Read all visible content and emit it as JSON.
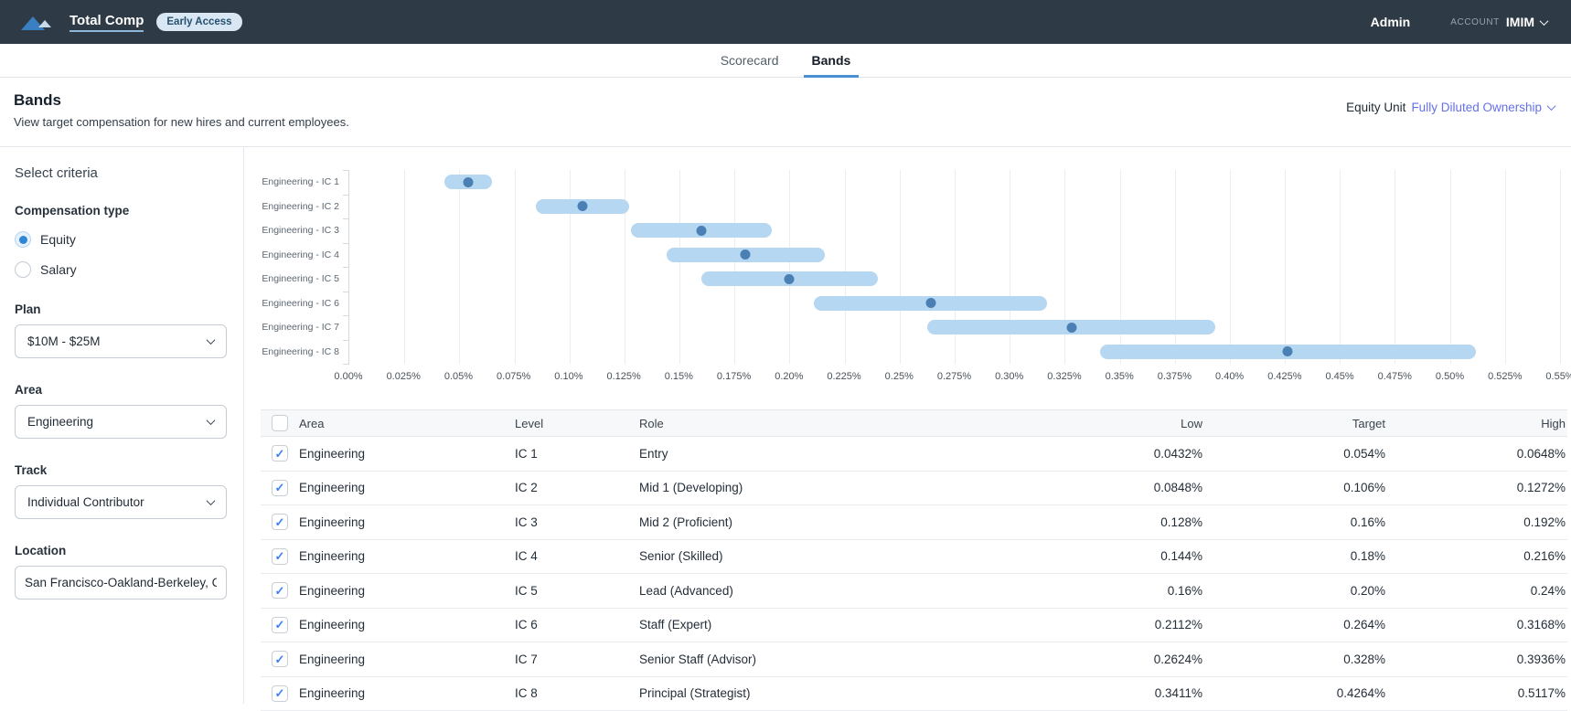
{
  "header": {
    "app_name": "Total Comp",
    "badge": "Early Access",
    "admin_label": "Admin",
    "account_label": "ACCOUNT",
    "account_name": "IMIM"
  },
  "tabs": [
    {
      "label": "Scorecard",
      "active": false
    },
    {
      "label": "Bands",
      "active": true
    }
  ],
  "page": {
    "title": "Bands",
    "subtitle": "View target compensation for new hires and current employees.",
    "equity_unit_label": "Equity Unit",
    "equity_unit_value": "Fully Diluted Ownership"
  },
  "sidebar": {
    "title": "Select criteria",
    "comp_type_label": "Compensation type",
    "radios": [
      {
        "label": "Equity",
        "selected": true
      },
      {
        "label": "Salary",
        "selected": false
      }
    ],
    "fields": [
      {
        "label": "Plan",
        "value": "$10M - $25M",
        "type": "select"
      },
      {
        "label": "Area",
        "value": "Engineering",
        "type": "select"
      },
      {
        "label": "Track",
        "value": "Individual Contributor",
        "type": "select"
      },
      {
        "label": "Location",
        "value": "San Francisco-Oakland-Berkeley, C.",
        "type": "input"
      }
    ]
  },
  "chart_data": {
    "type": "range-bar",
    "orientation": "horizontal",
    "xmin": 0,
    "xmax": 0.55,
    "grid": true,
    "ticks": [
      {
        "value": 0,
        "label": "0.00%"
      },
      {
        "value": 0.025,
        "label": "0.025%"
      },
      {
        "value": 0.05,
        "label": "0.05%"
      },
      {
        "value": 0.075,
        "label": "0.075%"
      },
      {
        "value": 0.1,
        "label": "0.10%"
      },
      {
        "value": 0.125,
        "label": "0.125%"
      },
      {
        "value": 0.15,
        "label": "0.15%"
      },
      {
        "value": 0.175,
        "label": "0.175%"
      },
      {
        "value": 0.2,
        "label": "0.20%"
      },
      {
        "value": 0.225,
        "label": "0.225%"
      },
      {
        "value": 0.25,
        "label": "0.25%"
      },
      {
        "value": 0.275,
        "label": "0.275%"
      },
      {
        "value": 0.3,
        "label": "0.30%"
      },
      {
        "value": 0.325,
        "label": "0.325%"
      },
      {
        "value": 0.35,
        "label": "0.35%"
      },
      {
        "value": 0.375,
        "label": "0.375%"
      },
      {
        "value": 0.4,
        "label": "0.40%"
      },
      {
        "value": 0.425,
        "label": "0.425%"
      },
      {
        "value": 0.45,
        "label": "0.45%"
      },
      {
        "value": 0.475,
        "label": "0.475%"
      },
      {
        "value": 0.5,
        "label": "0.50%"
      },
      {
        "value": 0.525,
        "label": "0.525%"
      },
      {
        "value": 0.55,
        "label": "0.55%"
      }
    ],
    "bands": [
      {
        "category": "Engineering - IC 1",
        "low": 0.0432,
        "target": 0.054,
        "high": 0.0648
      },
      {
        "category": "Engineering - IC 2",
        "low": 0.0848,
        "target": 0.106,
        "high": 0.1272
      },
      {
        "category": "Engineering - IC 3",
        "low": 0.128,
        "target": 0.16,
        "high": 0.192
      },
      {
        "category": "Engineering - IC 4",
        "low": 0.144,
        "target": 0.18,
        "high": 0.216
      },
      {
        "category": "Engineering - IC 5",
        "low": 0.16,
        "target": 0.2,
        "high": 0.24
      },
      {
        "category": "Engineering - IC 6",
        "low": 0.2112,
        "target": 0.264,
        "high": 0.3168
      },
      {
        "category": "Engineering - IC 7",
        "low": 0.2624,
        "target": 0.328,
        "high": 0.3936
      },
      {
        "category": "Engineering - IC 8",
        "low": 0.3411,
        "target": 0.4264,
        "high": 0.5117
      }
    ],
    "colors": {
      "band": "#b5d7f2",
      "target_dot": "#4a80b4",
      "gridline": "#ededee"
    }
  },
  "table": {
    "columns": [
      "Area",
      "Level",
      "Role",
      "Low",
      "Target",
      "High"
    ],
    "header_checkbox_checked": false,
    "rows": [
      {
        "checked": true,
        "area": "Engineering",
        "level": "IC 1",
        "role": "Entry",
        "low": "0.0432%",
        "target": "0.054%",
        "high": "0.0648%"
      },
      {
        "checked": true,
        "area": "Engineering",
        "level": "IC 2",
        "role": "Mid 1 (Developing)",
        "low": "0.0848%",
        "target": "0.106%",
        "high": "0.1272%"
      },
      {
        "checked": true,
        "area": "Engineering",
        "level": "IC 3",
        "role": "Mid 2 (Proficient)",
        "low": "0.128%",
        "target": "0.16%",
        "high": "0.192%"
      },
      {
        "checked": true,
        "area": "Engineering",
        "level": "IC 4",
        "role": "Senior (Skilled)",
        "low": "0.144%",
        "target": "0.18%",
        "high": "0.216%"
      },
      {
        "checked": true,
        "area": "Engineering",
        "level": "IC 5",
        "role": "Lead (Advanced)",
        "low": "0.16%",
        "target": "0.20%",
        "high": "0.24%"
      },
      {
        "checked": true,
        "area": "Engineering",
        "level": "IC 6",
        "role": "Staff (Expert)",
        "low": "0.2112%",
        "target": "0.264%",
        "high": "0.3168%"
      },
      {
        "checked": true,
        "area": "Engineering",
        "level": "IC 7",
        "role": "Senior Staff (Advisor)",
        "low": "0.2624%",
        "target": "0.328%",
        "high": "0.3936%"
      },
      {
        "checked": true,
        "area": "Engineering",
        "level": "IC 8",
        "role": "Principal (Strategist)",
        "low": "0.3411%",
        "target": "0.4264%",
        "high": "0.5117%"
      }
    ]
  }
}
